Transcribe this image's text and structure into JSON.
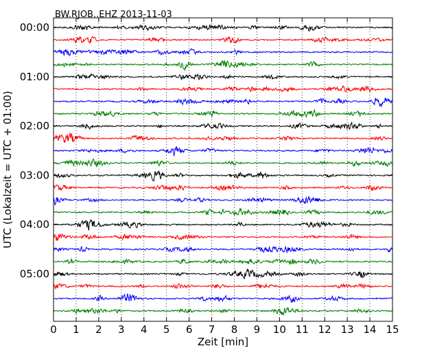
{
  "chart_data": {
    "type": "line",
    "title": "BW.RJOB..EHZ 2013-11-03",
    "xlabel": "Zeit  [min]",
    "ylabel": "UTC (Lokalzeit = UTC + 01:00)",
    "xlim": [
      0,
      15
    ],
    "x_ticks": [
      "0",
      "1",
      "2",
      "3",
      "4",
      "5",
      "6",
      "7",
      "8",
      "9",
      "10",
      "11",
      "12",
      "13",
      "14",
      "15"
    ],
    "y_ticks": [
      "00:00",
      "01:00",
      "02:00",
      "03:00",
      "04:00",
      "05:00"
    ],
    "grid": "vertical dotted",
    "trace_interval_minutes": 15,
    "trace_count": 24,
    "series_colors": [
      "#000000",
      "#ff0000",
      "#0000ff",
      "#008000"
    ]
  }
}
